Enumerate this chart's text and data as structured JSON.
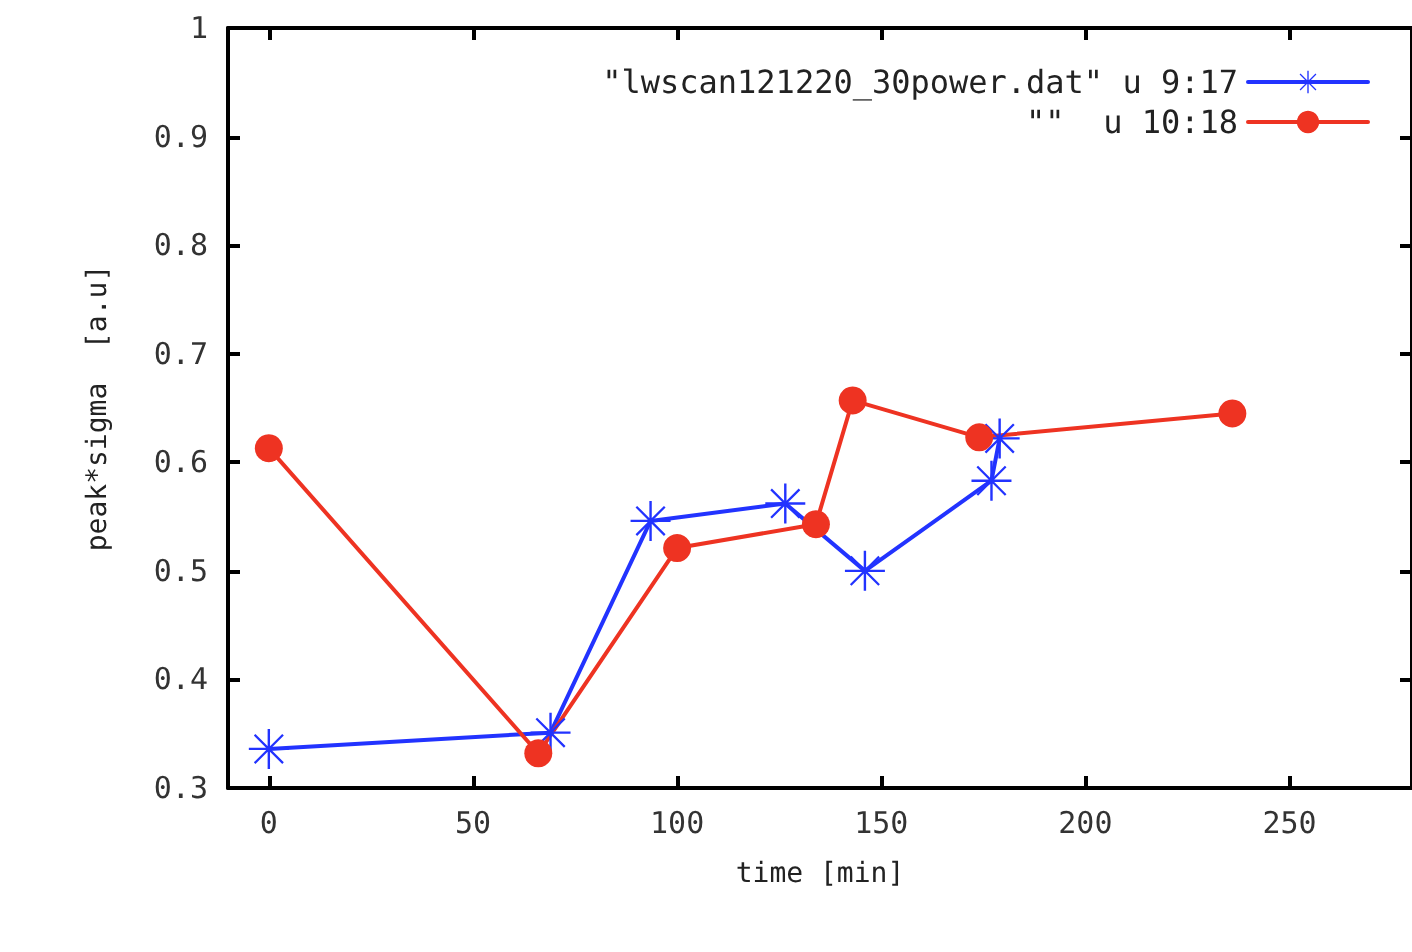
{
  "chart_data": {
    "type": "line",
    "xlabel": "time [min]",
    "ylabel": "peak*sigma  [a.u]",
    "xlim": [
      -10,
      280
    ],
    "xticks": [
      0,
      50,
      100,
      150,
      200,
      250
    ],
    "ylim": [
      0.3,
      1
    ],
    "yticks": [
      0.3,
      0.4,
      0.5,
      0.6,
      0.7,
      0.8,
      0.9,
      1
    ],
    "grid": false,
    "legend": "top right",
    "line_style": "solid",
    "series": [
      {
        "name": "\"lwscan121220_30power.dat\" u 9:17",
        "color": "#2233ff",
        "marker": "cross",
        "x": [
          0,
          69,
          93.5,
          126.5,
          146,
          177,
          179
        ],
        "values": [
          0.336,
          0.351,
          0.546,
          0.562,
          0.5,
          0.583,
          0.622
        ]
      },
      {
        "name": "\"\"  u 10:18",
        "color": "#ee3322",
        "marker": "circle",
        "x": [
          0,
          66,
          100,
          134,
          143,
          174,
          236
        ],
        "values": [
          0.613,
          0.332,
          0.521,
          0.543,
          0.657,
          0.623,
          0.645
        ]
      }
    ]
  }
}
